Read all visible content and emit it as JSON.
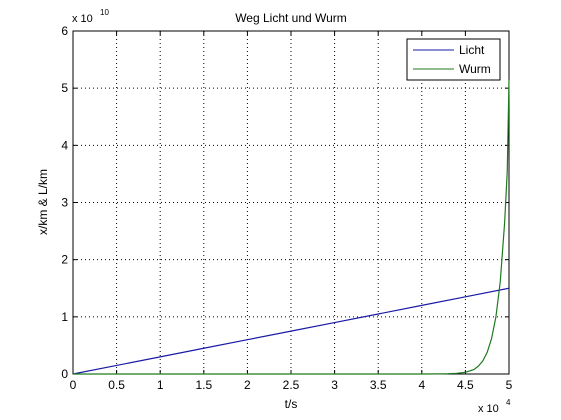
{
  "chart_data": {
    "type": "line",
    "title": "Weg Licht und Wurm",
    "xlabel": "t/s",
    "ylabel": "x/km & L/km",
    "x_multiplier_label": {
      "base": "x 10",
      "exp": "4"
    },
    "y_multiplier_label": {
      "base": "x 10",
      "exp": "10"
    },
    "xlim": [
      0,
      5
    ],
    "ylim": [
      0,
      6
    ],
    "xticks": [
      "0",
      "0.5",
      "1",
      "1.5",
      "2",
      "2.5",
      "3",
      "3.5",
      "4",
      "4.5",
      "5"
    ],
    "yticks": [
      "0",
      "1",
      "2",
      "3",
      "4",
      "5",
      "6"
    ],
    "grid": true,
    "legend_position": "top-right",
    "series": [
      {
        "name": "Licht",
        "color": "#1a1aa6",
        "x": [
          0,
          0.5,
          1,
          1.5,
          2,
          2.5,
          3,
          3.5,
          4,
          4.5,
          5
        ],
        "y": [
          0,
          0.15,
          0.3,
          0.45,
          0.6,
          0.75,
          0.9,
          1.05,
          1.2,
          1.35,
          1.5
        ]
      },
      {
        "name": "Wurm",
        "color": "#1c7a1c",
        "x": [
          0,
          1,
          2,
          3,
          4,
          4.2,
          4.3,
          4.4,
          4.5,
          4.6,
          4.65,
          4.7,
          4.75,
          4.8,
          4.85,
          4.9,
          4.95,
          4.98,
          5.0
        ],
        "y": [
          0,
          0,
          0,
          0,
          0,
          0.002,
          0.005,
          0.012,
          0.03,
          0.08,
          0.14,
          0.23,
          0.38,
          0.62,
          1.0,
          1.62,
          2.65,
          3.55,
          5.15
        ]
      }
    ]
  }
}
